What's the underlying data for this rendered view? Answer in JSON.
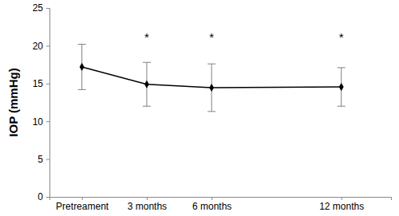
{
  "chart_data": {
    "type": "line",
    "y_label": "IOP (mmHg)",
    "x": [
      0,
      3,
      6,
      12
    ],
    "xticks": [
      {
        "value": 0,
        "label": "Pretreament"
      },
      {
        "value": 3,
        "label": "3 months"
      },
      {
        "value": 6,
        "label": "6 months"
      },
      {
        "value": 12,
        "label": "12 months"
      }
    ],
    "xlim": [
      -1.5,
      14.3
    ],
    "values": [
      17.2,
      14.9,
      14.45,
      14.55
    ],
    "errors": [
      3.0,
      2.9,
      3.15,
      2.55
    ],
    "ylim": [
      0,
      25
    ],
    "yticks": [
      0,
      5,
      10,
      15,
      20,
      25
    ],
    "color": "#000000",
    "marker": "diamond",
    "grid": false,
    "annotations": [
      {
        "text": "*",
        "x": 3,
        "y": 21
      },
      {
        "text": "*",
        "x": 6,
        "y": 21
      },
      {
        "text": "*",
        "x": 12,
        "y": 21
      }
    ]
  }
}
